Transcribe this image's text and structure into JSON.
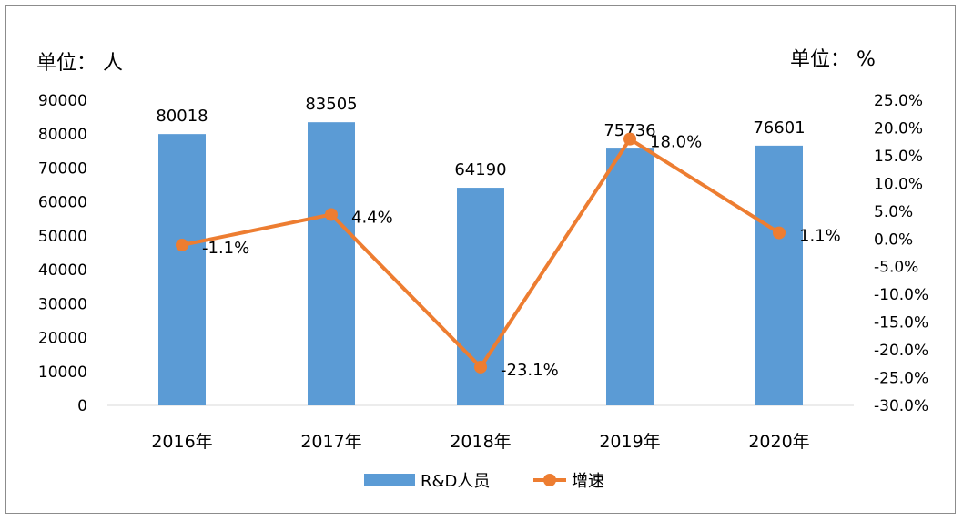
{
  "chart_data": {
    "type": "bar",
    "categories": [
      "2016年",
      "2017年",
      "2018年",
      "2019年",
      "2020年"
    ],
    "series": [
      {
        "name": "R&D人员",
        "type": "bar",
        "axis": "left",
        "values": [
          80018,
          83505,
          64190,
          75736,
          76601
        ],
        "labels": [
          "80018",
          "83505",
          "64190",
          "75736",
          "76601"
        ],
        "color": "#5b9bd5"
      },
      {
        "name": "增速",
        "type": "line",
        "axis": "right",
        "values": [
          -1.1,
          4.4,
          -23.1,
          18.0,
          1.1
        ],
        "labels": [
          "-1.1%",
          "4.4%",
          "-23.1%",
          "18.0%",
          "1.1%"
        ],
        "color": "#ed7d31"
      }
    ],
    "y_left": {
      "unit_label": "单位：  人",
      "range": [
        0,
        90000
      ],
      "ticks": [
        "0",
        "10000",
        "20000",
        "30000",
        "40000",
        "50000",
        "60000",
        "70000",
        "80000",
        "90000"
      ]
    },
    "y_right": {
      "unit_label": "单位：  %",
      "range": [
        -30,
        25
      ],
      "ticks": [
        "-30.0%",
        "-25.0%",
        "-20.0%",
        "-15.0%",
        "-10.0%",
        "-5.0%",
        "0.0%",
        "5.0%",
        "10.0%",
        "15.0%",
        "20.0%",
        "25.0%"
      ]
    },
    "grid": false,
    "legend_position": "bottom"
  }
}
